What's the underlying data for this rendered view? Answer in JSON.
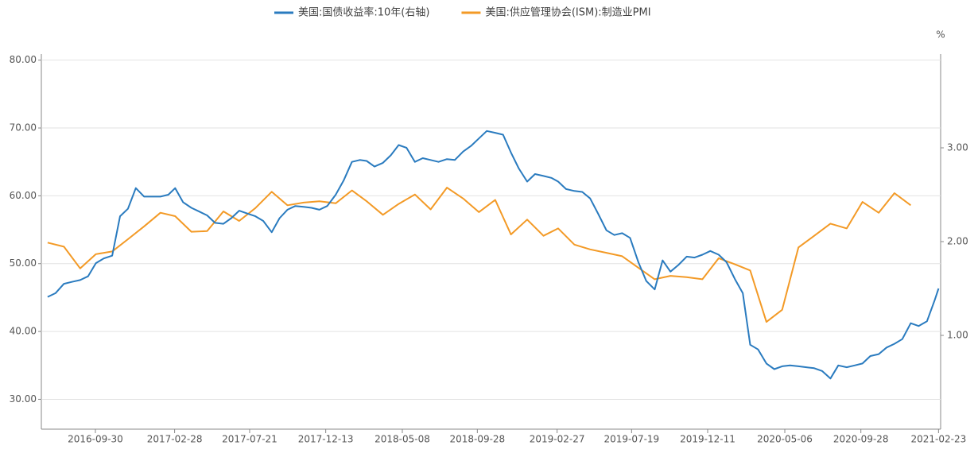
{
  "chart_data": {
    "type": "line",
    "y2_unit": "%",
    "xlim": [
      "2016-06-19",
      "2021-02-27"
    ],
    "xticks": [
      "2016-09-30",
      "2017-02-28",
      "2017-07-21",
      "2017-12-13",
      "2018-05-08",
      "2018-09-28",
      "2019-02-27",
      "2019-07-19",
      "2019-12-11",
      "2020-05-06",
      "2020-09-28",
      "2021-02-23"
    ],
    "ylim": [
      25.6,
      80.9
    ],
    "yticks": [
      {
        "value": 30,
        "label": "30.00"
      },
      {
        "value": 40,
        "label": "40.00"
      },
      {
        "value": 50,
        "label": "50.00"
      },
      {
        "value": 60,
        "label": "60.00"
      },
      {
        "value": 70,
        "label": "70.00"
      },
      {
        "value": 80,
        "label": "80.00"
      }
    ],
    "y2lim": [
      0,
      4
    ],
    "y2ticks": [
      {
        "value": 1,
        "label": "1.00"
      },
      {
        "value": 2,
        "label": "2.00"
      },
      {
        "value": 3,
        "label": "3.00"
      }
    ],
    "grid": true,
    "legend": "top",
    "series": [
      {
        "name": "美国:国债收益率:10年(右轴)",
        "color": "#2a7bbf",
        "axis": "y2",
        "x": [
          "2016-07-01",
          "2016-07-16",
          "2016-08-01",
          "2016-08-16",
          "2016-09-01",
          "2016-09-16",
          "2016-10-01",
          "2016-10-16",
          "2016-11-01",
          "2016-11-16",
          "2016-12-01",
          "2016-12-16",
          "2017-01-01",
          "2017-01-16",
          "2017-02-01",
          "2017-02-16",
          "2017-03-01",
          "2017-03-16",
          "2017-04-01",
          "2017-04-16",
          "2017-05-01",
          "2017-05-16",
          "2017-06-01",
          "2017-06-16",
          "2017-07-01",
          "2017-07-16",
          "2017-08-01",
          "2017-08-16",
          "2017-09-01",
          "2017-09-16",
          "2017-10-01",
          "2017-10-16",
          "2017-11-01",
          "2017-11-16",
          "2017-12-01",
          "2017-12-16",
          "2018-01-01",
          "2018-01-16",
          "2018-02-01",
          "2018-02-16",
          "2018-03-01",
          "2018-03-16",
          "2018-04-01",
          "2018-04-16",
          "2018-05-01",
          "2018-05-16",
          "2018-06-01",
          "2018-06-16",
          "2018-07-01",
          "2018-07-16",
          "2018-08-01",
          "2018-08-16",
          "2018-09-01",
          "2018-09-16",
          "2018-10-01",
          "2018-10-16",
          "2018-11-01",
          "2018-11-16",
          "2018-12-01",
          "2018-12-16",
          "2019-01-01",
          "2019-01-16",
          "2019-02-01",
          "2019-02-16",
          "2019-03-01",
          "2019-03-16",
          "2019-04-01",
          "2019-04-16",
          "2019-05-01",
          "2019-05-16",
          "2019-06-01",
          "2019-06-16",
          "2019-07-01",
          "2019-07-16",
          "2019-08-01",
          "2019-08-16",
          "2019-09-01",
          "2019-09-16",
          "2019-10-01",
          "2019-10-16",
          "2019-11-01",
          "2019-11-16",
          "2019-12-01",
          "2019-12-16",
          "2020-01-01",
          "2020-01-16",
          "2020-02-01",
          "2020-02-16",
          "2020-03-01",
          "2020-03-16",
          "2020-04-01",
          "2020-04-16",
          "2020-05-01",
          "2020-05-16",
          "2020-06-01",
          "2020-06-16",
          "2020-07-01",
          "2020-07-16",
          "2020-08-01",
          "2020-08-16",
          "2020-09-01",
          "2020-09-16",
          "2020-10-01",
          "2020-10-16",
          "2020-11-01",
          "2020-11-16",
          "2020-12-01",
          "2020-12-16",
          "2021-01-01",
          "2021-01-16",
          "2021-02-01",
          "2021-02-16",
          "2021-02-23"
        ],
        "values": [
          1.41,
          1.45,
          1.55,
          1.57,
          1.59,
          1.63,
          1.77,
          1.82,
          1.85,
          2.27,
          2.35,
          2.57,
          2.48,
          2.48,
          2.48,
          2.5,
          2.57,
          2.42,
          2.36,
          2.32,
          2.28,
          2.2,
          2.19,
          2.25,
          2.33,
          2.3,
          2.27,
          2.22,
          2.1,
          2.25,
          2.34,
          2.38,
          2.37,
          2.36,
          2.34,
          2.38,
          2.5,
          2.65,
          2.85,
          2.87,
          2.86,
          2.8,
          2.84,
          2.92,
          3.03,
          3.0,
          2.85,
          2.89,
          2.87,
          2.85,
          2.88,
          2.87,
          2.96,
          3.02,
          3.1,
          3.18,
          3.16,
          3.14,
          2.95,
          2.78,
          2.64,
          2.72,
          2.7,
          2.68,
          2.64,
          2.56,
          2.54,
          2.53,
          2.46,
          2.3,
          2.12,
          2.07,
          2.09,
          2.04,
          1.78,
          1.58,
          1.49,
          1.8,
          1.68,
          1.75,
          1.84,
          1.83,
          1.86,
          1.9,
          1.86,
          1.78,
          1.6,
          1.45,
          0.9,
          0.85,
          0.7,
          0.64,
          0.67,
          0.68,
          0.67,
          0.66,
          0.65,
          0.62,
          0.54,
          0.68,
          0.66,
          0.68,
          0.7,
          0.78,
          0.8,
          0.87,
          0.91,
          0.96,
          1.13,
          1.1,
          1.15,
          1.38,
          1.5
        ]
      },
      {
        "name": "美国:供应管理协会(ISM):制造业PMI",
        "color": "#f39a26",
        "x": [
          "2016-07-01",
          "2016-08-01",
          "2016-09-01",
          "2016-10-01",
          "2016-11-01",
          "2016-12-01",
          "2017-01-01",
          "2017-02-01",
          "2017-03-01",
          "2017-04-01",
          "2017-05-01",
          "2017-06-01",
          "2017-07-01",
          "2017-08-01",
          "2017-09-01",
          "2017-10-01",
          "2017-11-01",
          "2017-12-01",
          "2018-01-01",
          "2018-02-01",
          "2018-03-01",
          "2018-04-01",
          "2018-05-01",
          "2018-06-01",
          "2018-07-01",
          "2018-08-01",
          "2018-09-01",
          "2018-10-01",
          "2018-11-01",
          "2018-12-01",
          "2019-01-01",
          "2019-02-01",
          "2019-03-01",
          "2019-04-01",
          "2019-05-01",
          "2019-06-01",
          "2019-07-01",
          "2019-08-01",
          "2019-09-01",
          "2019-10-01",
          "2019-11-01",
          "2019-12-01",
          "2020-01-01",
          "2020-02-01",
          "2020-03-01",
          "2020-04-01",
          "2020-05-01",
          "2020-06-01",
          "2020-07-01",
          "2020-08-01",
          "2020-09-01",
          "2020-10-01",
          "2020-11-01",
          "2020-12-01",
          "2021-01-01"
        ],
        "values": [
          53.1,
          52.5,
          49.3,
          51.4,
          51.8,
          53.6,
          55.5,
          57.5,
          57.0,
          54.7,
          54.8,
          57.7,
          56.3,
          58.2,
          60.6,
          58.6,
          59.0,
          59.2,
          58.9,
          60.8,
          59.2,
          57.2,
          58.8,
          60.2,
          58.0,
          61.2,
          59.6,
          57.6,
          59.4,
          54.3,
          56.5,
          54.1,
          55.2,
          52.8,
          52.1,
          51.6,
          51.1,
          49.4,
          47.7,
          48.2,
          48.0,
          47.7,
          50.8,
          49.9,
          49.0,
          41.4,
          43.2,
          52.4,
          54.1,
          55.9,
          55.2,
          59.1,
          57.5,
          60.4,
          58.6
        ]
      }
    ]
  }
}
